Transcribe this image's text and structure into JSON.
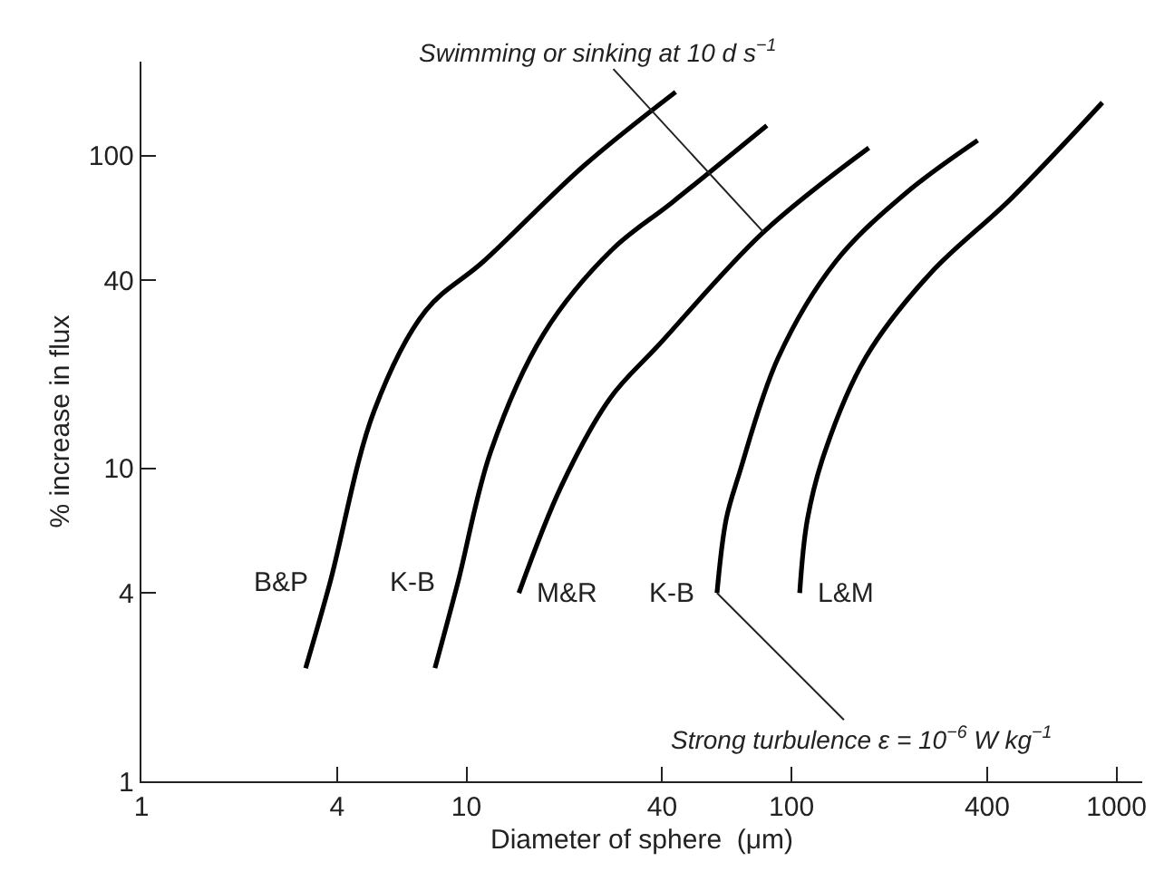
{
  "chart_data": {
    "type": "line",
    "xlabel": "Diameter of sphere  (μm)",
    "ylabel": "% increase in flux",
    "log": "xy",
    "grid": false,
    "legend": false,
    "marker": "none",
    "line_style": "solid",
    "xlim": [
      1,
      1200
    ],
    "xticks": [
      1,
      4,
      10,
      40,
      100,
      400,
      1000
    ],
    "ylim": [
      1,
      200
    ],
    "yticks": [
      1,
      4,
      10,
      40,
      100
    ],
    "series": [
      {
        "name": "B&P",
        "color": "#000000",
        "x": [
          3.2,
          3.8,
          5.2,
          7.5,
          11.3,
          23,
          44
        ],
        "values": [
          2.3,
          4.3,
          15.3,
          32,
          46,
          93,
          160
        ]
      },
      {
        "name": "K-B",
        "color": "#000000",
        "x": [
          8.0,
          9.4,
          11.9,
          17.3,
          28,
          43,
          84
        ],
        "values": [
          2.3,
          4.3,
          11.4,
          27,
          50,
          71,
          125
        ]
      },
      {
        "name": "M&R",
        "color": "#000000",
        "x": [
          14.5,
          19.6,
          27.7,
          39,
          82,
          173
        ],
        "values": [
          4.0,
          8.8,
          16.8,
          24.8,
          57,
          106
        ]
      },
      {
        "name": "K-B",
        "color": "#000000",
        "x": [
          59,
          63,
          69,
          91,
          137,
          225,
          374
        ],
        "values": [
          4.0,
          6.9,
          9.6,
          22.6,
          46,
          76,
          112
        ]
      },
      {
        "name": "L&M",
        "color": "#000000",
        "x": [
          106,
          112,
          127,
          169,
          267,
          474,
          905
        ],
        "values": [
          4.0,
          6.9,
          11.4,
          22.6,
          42,
          73,
          148
        ]
      }
    ],
    "annotations": [
      {
        "text": "Swimming or sinking at 10 d s$^{−1}$",
        "x": 82,
        "y": 57
      },
      {
        "text": "Strong turbulence ε = 10$^{−6}$ W kg$^{−1}$",
        "x": 59,
        "y": 4.0
      }
    ]
  }
}
